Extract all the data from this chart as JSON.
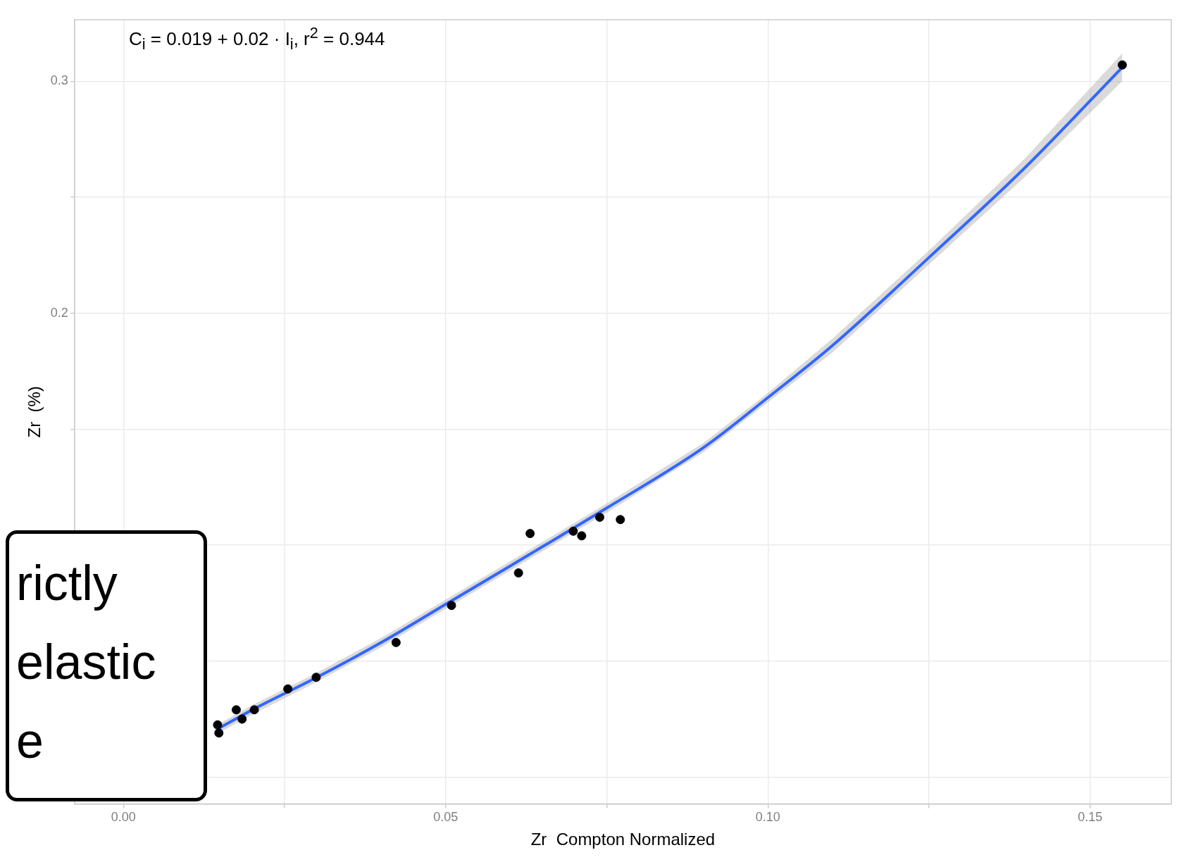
{
  "chart_data": {
    "type": "scatter",
    "xlabel": "Zr  Compton Normalized",
    "ylabel": "Zr  (%)",
    "annotations": [
      "C$_{i}$ = 0.019 + 0.02 · I$_{i}$,  r$^{2}$ = 0.944",
      "rictly",
      "elastic",
      "e"
    ],
    "xlim": [
      -0.0076,
      0.1626
    ],
    "ylim": [
      -0.0116,
      0.3265
    ],
    "xticks": [
      {
        "value": 0,
        "label": "0.00"
      },
      {
        "value": 0.025,
        "label": null
      },
      {
        "value": 0.05,
        "label": "0.05"
      },
      {
        "value": 0.075,
        "label": null
      },
      {
        "value": 0.1,
        "label": "0.10"
      },
      {
        "value": 0.125,
        "label": null
      },
      {
        "value": 0.15,
        "label": "0.15"
      }
    ],
    "yticks": [
      {
        "value": 0,
        "label": null
      },
      {
        "value": 0.05,
        "label": null
      },
      {
        "value": 0.1,
        "label": null
      },
      {
        "value": 0.15,
        "label": null
      },
      0.2,
      {
        "value": 0.25,
        "label": null
      },
      0.3
    ],
    "grid": true,
    "legend": false,
    "series": [
      {
        "marker": "circle",
        "color": "#000000",
        "x": [
          0.0146,
          0.0148,
          0.0175,
          0.0184,
          0.0203,
          0.0255,
          0.0299,
          0.0423,
          0.0509,
          0.0613,
          0.0631,
          0.0698,
          0.0711,
          0.0739,
          0.0771,
          0.155
        ],
        "values": [
          0.0225,
          0.019,
          0.029,
          0.025,
          0.029,
          0.038,
          0.043,
          0.058,
          0.074,
          0.088,
          0.105,
          0.106,
          0.104,
          0.112,
          0.111,
          0.307
        ]
      },
      {
        "type": "line",
        "marker": "none",
        "color": "#3366ff",
        "x": [
          0.0148,
          0.02,
          0.03,
          0.04,
          0.05,
          0.06,
          0.075,
          0.09,
          0.1,
          0.11,
          0.125,
          0.14,
          0.155
        ],
        "values": [
          0.021,
          0.029,
          0.043,
          0.058,
          0.0745,
          0.091,
          0.116,
          0.142,
          0.1636,
          0.186,
          0.224,
          0.263,
          0.306
        ],
        "lower": [
          0.019,
          0.027,
          0.041,
          0.056,
          0.0725,
          0.089,
          0.114,
          0.14,
          0.1616,
          0.183,
          0.221,
          0.259,
          0.3
        ],
        "upper": [
          0.023,
          0.031,
          0.045,
          0.06,
          0.0765,
          0.093,
          0.118,
          0.144,
          0.1656,
          0.189,
          0.227,
          0.267,
          0.312
        ]
      }
    ]
  }
}
